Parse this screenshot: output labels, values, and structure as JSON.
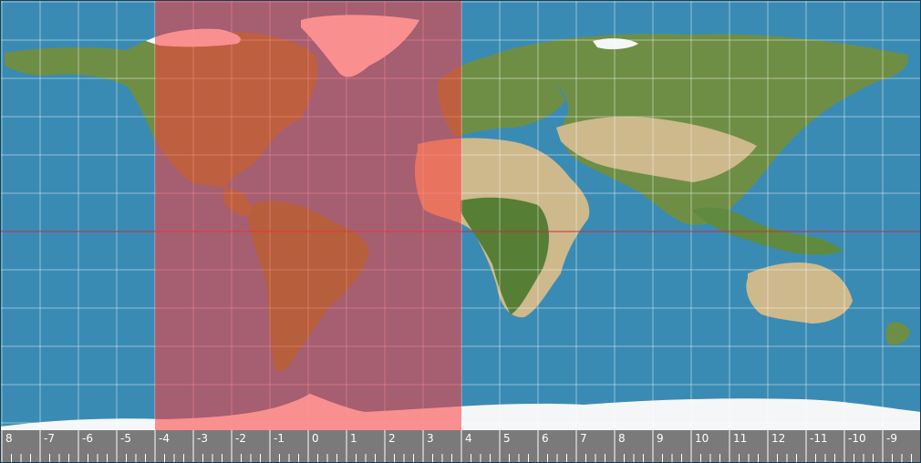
{
  "map": {
    "ocean_color": "#3a8bb3",
    "land_color": "#6f8e45",
    "desert_color": "#cdb98c",
    "ice_color": "#f4f6f8",
    "grid_color": "#ffffff",
    "equator_color": "#e0233b",
    "highlight_color": "#ff3b3b",
    "highlight_range": {
      "from": -4,
      "to": 4
    }
  },
  "ruler": {
    "background": "#7a7a7a",
    "labels": [
      "8",
      "-7",
      "-6",
      "-5",
      "-4",
      "-3",
      "-2",
      "-1",
      "0",
      "1",
      "2",
      "3",
      "4",
      "5",
      "6",
      "7",
      "8",
      "9",
      "10",
      "11",
      "12",
      "-11",
      "-10",
      "-9"
    ]
  }
}
